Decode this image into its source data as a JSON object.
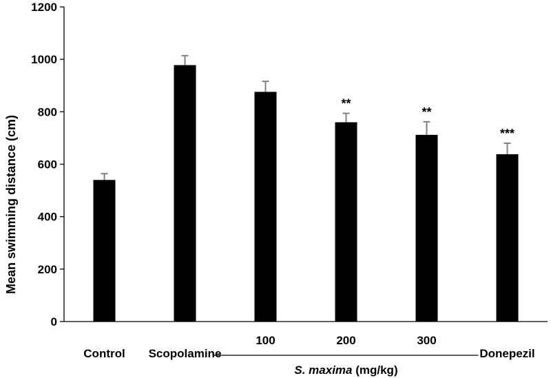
{
  "chart_data": {
    "type": "bar",
    "categories": [
      "Control",
      "Scopolamine",
      "100",
      "200",
      "300",
      "Donepezil"
    ],
    "values": [
      540,
      978,
      876,
      760,
      712,
      638
    ],
    "errors": [
      24,
      36,
      40,
      34,
      50,
      42
    ],
    "significance": [
      "",
      "",
      "",
      "**",
      "**",
      "***"
    ],
    "ylabel": "Mean swimming distance (cm)",
    "ylim": [
      0,
      1200
    ],
    "yticks": [
      0,
      200,
      400,
      600,
      800,
      1000,
      1200
    ],
    "group_label": {
      "species": "S. maxima",
      "unit": " (mg/kg)",
      "covers": [
        "100",
        "200",
        "300"
      ]
    },
    "bar_color": "#000000",
    "error_color": "#808080",
    "grid": false
  }
}
